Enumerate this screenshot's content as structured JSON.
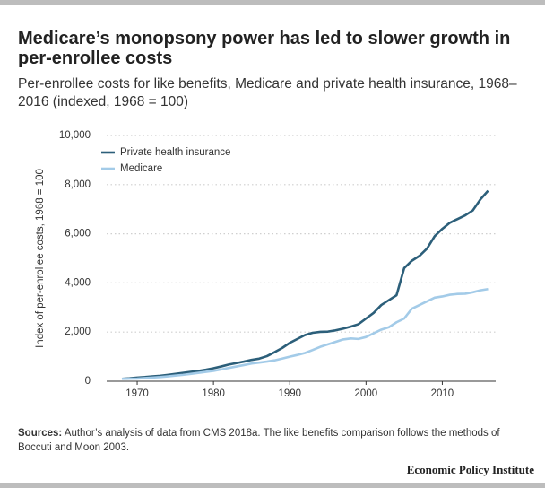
{
  "chart_data": {
    "type": "line",
    "title": "Medicare’s monopsony power has led to slower growth in per-enrollee costs",
    "subtitle": "Per-enrollee costs for like benefits, Medicare and private health insurance, 1968–2016 (indexed, 1968 = 100)",
    "y_label": "Index of per-enrollee costs, 1968 = 100",
    "sources_label": "Sources:",
    "sources_text": "Author’s analysis of data from CMS 2018a. The like benefits comparison follows the methods of Boccuti and Moon 2003.",
    "footer": "Economic Policy Institute",
    "x": [
      1968,
      1969,
      1970,
      1971,
      1972,
      1973,
      1974,
      1975,
      1976,
      1977,
      1978,
      1979,
      1980,
      1981,
      1982,
      1983,
      1984,
      1985,
      1986,
      1987,
      1988,
      1989,
      1990,
      1991,
      1992,
      1993,
      1994,
      1995,
      1996,
      1997,
      1998,
      1999,
      2000,
      2001,
      2002,
      2003,
      2004,
      2005,
      2006,
      2007,
      2008,
      2009,
      2010,
      2011,
      2012,
      2013,
      2014,
      2015,
      2016
    ],
    "series": [
      {
        "name": "Private health insurance",
        "color": "#2c5f7a",
        "values": [
          100,
          120,
          150,
          170,
          200,
          220,
          260,
          300,
          340,
          380,
          420,
          470,
          530,
          600,
          680,
          740,
          800,
          870,
          920,
          1020,
          1180,
          1350,
          1560,
          1720,
          1880,
          1970,
          2010,
          2020,
          2070,
          2140,
          2220,
          2320,
          2550,
          2780,
          3100,
          3300,
          3500,
          4600,
          4900,
          5100,
          5400,
          5900,
          6200,
          6450,
          6600,
          6750,
          6950,
          7400,
          7750
        ]
      },
      {
        "name": "Medicare",
        "color": "#a3cbe8",
        "values": [
          100,
          105,
          110,
          130,
          150,
          170,
          200,
          230,
          260,
          300,
          340,
          380,
          420,
          480,
          540,
          600,
          660,
          720,
          760,
          800,
          850,
          920,
          1000,
          1070,
          1150,
          1270,
          1400,
          1500,
          1600,
          1700,
          1740,
          1720,
          1800,
          1950,
          2100,
          2200,
          2400,
          2550,
          2950,
          3100,
          3250,
          3400,
          3450,
          3520,
          3550,
          3560,
          3620,
          3700,
          3750
        ]
      }
    ],
    "xlim": [
      1966,
      2017
    ],
    "xticks": [
      1970,
      1980,
      1990,
      2000,
      2010
    ],
    "ylim": [
      0,
      10000
    ],
    "yticks": [
      0,
      {
        "value": 2000,
        "label": "2,000"
      },
      {
        "value": 4000,
        "label": "4,000"
      },
      {
        "value": 6000,
        "label": "6,000"
      },
      {
        "value": 8000,
        "label": "8,000"
      },
      {
        "value": 10000,
        "label": "10,000"
      }
    ],
    "grid": true,
    "legend": "upper left"
  }
}
